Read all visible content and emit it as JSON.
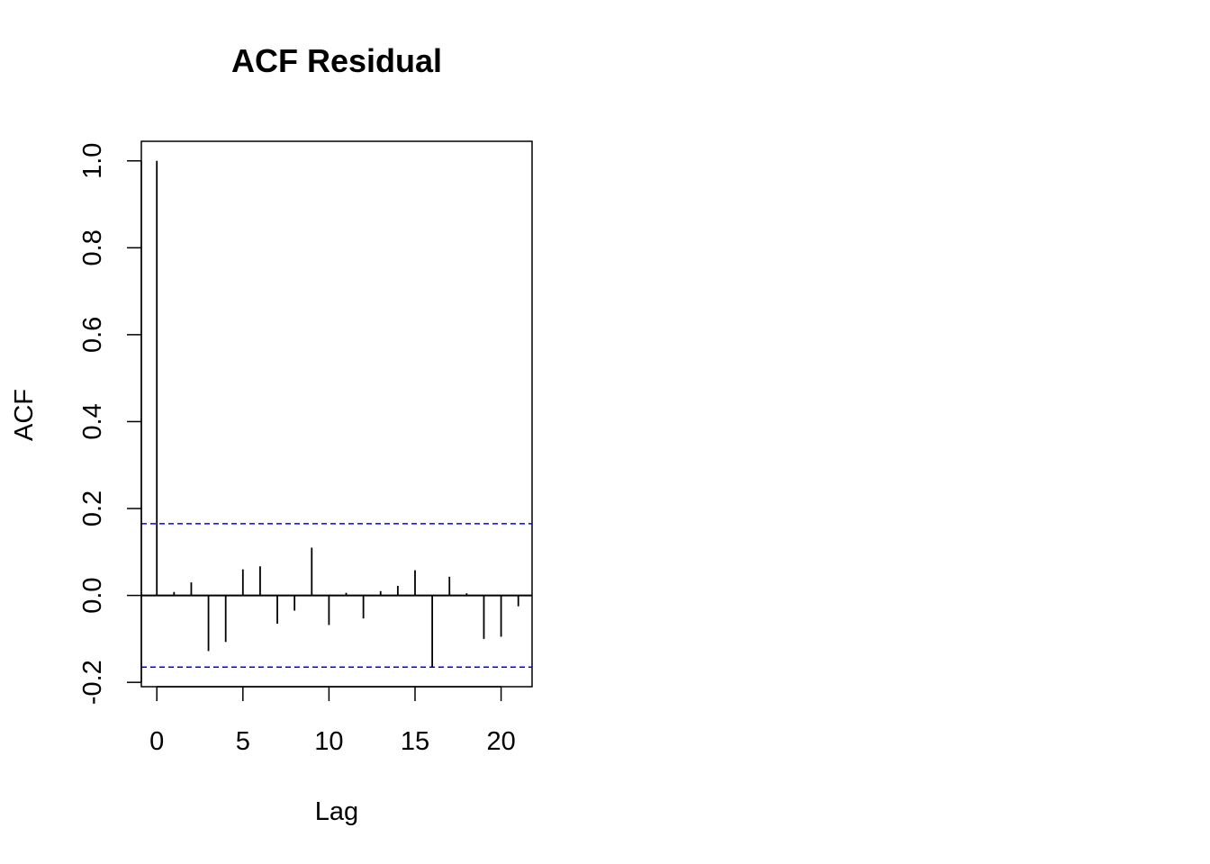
{
  "chart_data": {
    "type": "bar",
    "title": "ACF Residual",
    "xlabel": "Lag",
    "ylabel": "ACF",
    "x": [
      0,
      1,
      2,
      3,
      4,
      5,
      6,
      7,
      8,
      9,
      10,
      11,
      12,
      13,
      14,
      15,
      16,
      17,
      18,
      19,
      20,
      21
    ],
    "values": [
      1.0,
      0.008,
      0.03,
      -0.128,
      -0.107,
      0.06,
      0.067,
      -0.065,
      -0.035,
      0.11,
      -0.068,
      0.006,
      -0.053,
      0.01,
      0.022,
      0.058,
      -0.165,
      0.043,
      0.005,
      -0.1,
      -0.095,
      -0.025
    ],
    "confidence_band": 0.165,
    "xlim": [
      -0.9,
      21.8
    ],
    "ylim": [
      -0.21,
      1.045
    ],
    "x_ticks": [
      0,
      5,
      10,
      15,
      20
    ],
    "x_tick_labels": [
      "0",
      "5",
      "10",
      "15",
      "20"
    ],
    "y_ticks": [
      -0.2,
      0.0,
      0.2,
      0.4,
      0.6,
      0.8,
      1.0
    ],
    "y_tick_labels": [
      "-0.2",
      "0.0",
      "0.2",
      "0.4",
      "0.6",
      "0.8",
      "1.0"
    ],
    "grid": false,
    "colors": {
      "bars": "#000000",
      "confidence_band": "#0000ff",
      "zero_line": "#000000",
      "frame": "#000000"
    }
  }
}
